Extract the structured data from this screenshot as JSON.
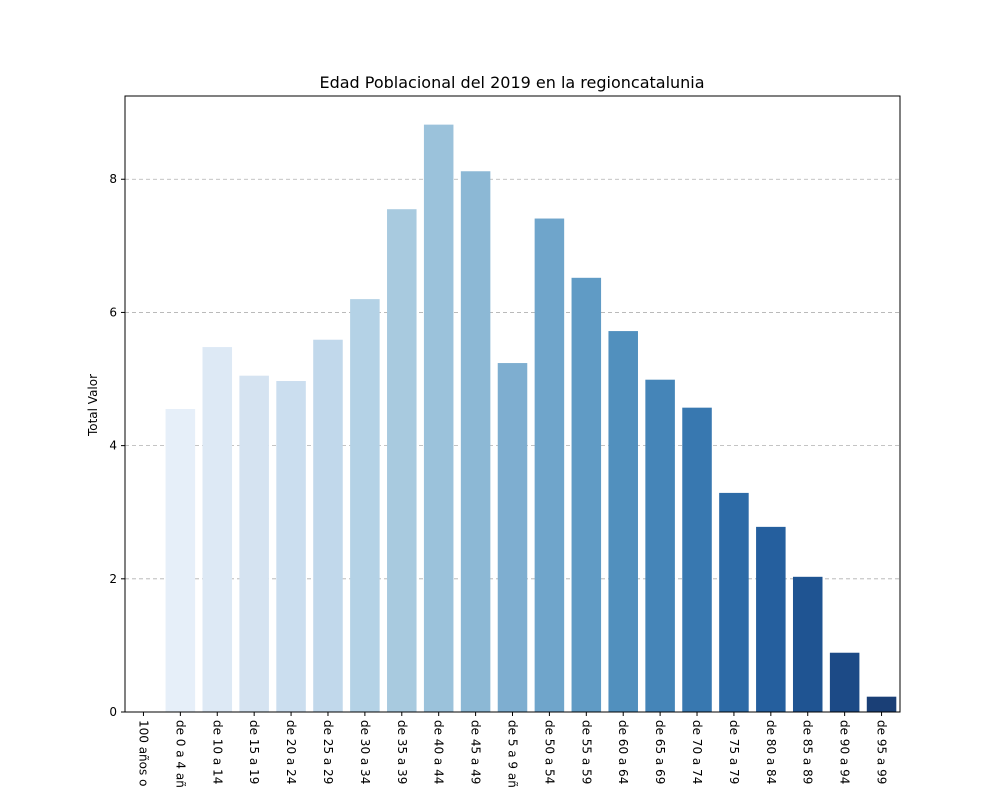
{
  "chart_data": {
    "type": "bar",
    "title": "Edad Poblacional del 2019 en la regioncatalunia",
    "xlabel": "",
    "ylabel": "Total Valor",
    "ylim": [
      0,
      9.25
    ],
    "yticks": [
      0,
      2,
      4,
      6,
      8
    ],
    "grid": "y",
    "categories": [
      "100 años o",
      "de 0 a 4 añ",
      "de 10 a 14",
      "de 15 a 19",
      "de 20 a 24",
      "de 25 a 29",
      "de 30 a 34",
      "de 35 a 39",
      "de 40 a 44",
      "de 45 a 49",
      "de 5 a 9 añ",
      "de 50 a 54",
      "de 55 a 59",
      "de 60 a 64",
      "de 65 a 69",
      "de 70 a 74",
      "de 75 a 79",
      "de 80 a 84",
      "de 85 a 89",
      "de 90 a 94",
      "de 95 a 99"
    ],
    "values": [
      0.0,
      4.55,
      5.48,
      5.05,
      4.97,
      5.59,
      6.2,
      7.55,
      8.82,
      8.12,
      5.24,
      7.41,
      6.52,
      5.72,
      4.99,
      4.57,
      3.29,
      2.78,
      2.03,
      0.89,
      0.23
    ],
    "colors": [
      "#f1f6fc",
      "#e6eff9",
      "#dde9f5",
      "#d5e3f1",
      "#cbdeef",
      "#c1d8eb",
      "#b4d2e6",
      "#a8cadf",
      "#9bc2db",
      "#8cb8d5",
      "#7eaed0",
      "#6fa5cb",
      "#609bc5",
      "#5190be",
      "#4585b8",
      "#3878b0",
      "#2d6ba7",
      "#255f9e",
      "#1f5492",
      "#1c4a86",
      "#1a3f76"
    ]
  }
}
